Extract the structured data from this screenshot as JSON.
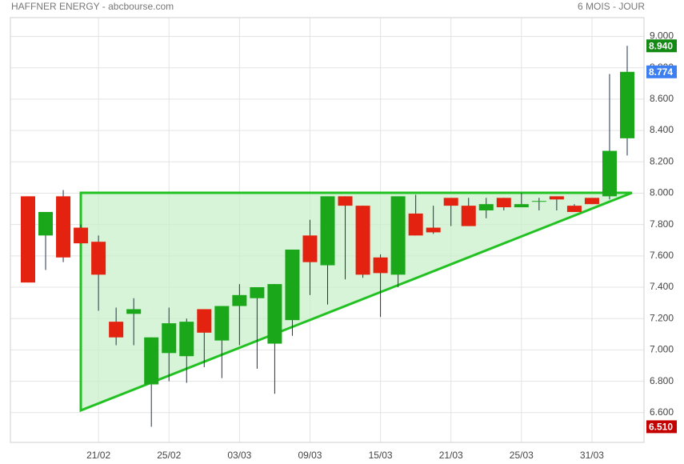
{
  "header": {
    "title": "HAFFNER ENERGY - abcbourse.com",
    "period": "6 MOIS - JOUR"
  },
  "chart_data": {
    "type": "candlestick",
    "categories": [
      null,
      null,
      null,
      null,
      "21/02",
      null,
      null,
      null,
      "25/02",
      null,
      null,
      null,
      "03/03",
      null,
      null,
      null,
      "09/03",
      null,
      null,
      null,
      "15/03",
      null,
      null,
      null,
      "21/03",
      null,
      null,
      null,
      "25/03",
      null,
      null,
      null,
      "31/03",
      null,
      null
    ],
    "open": [
      7.98,
      7.73,
      7.98,
      7.78,
      7.69,
      7.18,
      7.23,
      6.78,
      6.98,
      6.96,
      7.26,
      7.06,
      7.28,
      7.33,
      7.04,
      7.19,
      7.73,
      7.54,
      7.98,
      7.92,
      7.59,
      7.48,
      7.87,
      7.78,
      7.97,
      7.92,
      7.89,
      7.97,
      7.91,
      7.95,
      7.98,
      7.92,
      7.97,
      7.98,
      8.35
    ],
    "high": [
      7.98,
      7.88,
      8.02,
      7.8,
      7.73,
      7.27,
      7.33,
      7.08,
      7.27,
      7.2,
      7.26,
      7.28,
      7.42,
      7.4,
      7.42,
      7.64,
      7.83,
      7.98,
      7.98,
      7.92,
      7.61,
      7.98,
      7.99,
      7.92,
      7.97,
      7.97,
      7.97,
      7.97,
      8.0,
      7.97,
      7.98,
      7.93,
      7.97,
      8.76,
      8.94
    ],
    "low": [
      7.43,
      7.51,
      7.56,
      7.68,
      7.25,
      7.03,
      7.03,
      6.51,
      6.8,
      6.79,
      6.89,
      6.82,
      7.03,
      6.88,
      6.72,
      7.09,
      7.35,
      7.29,
      7.45,
      7.46,
      7.21,
      7.4,
      7.73,
      7.74,
      7.79,
      7.79,
      7.84,
      7.89,
      7.91,
      7.89,
      7.89,
      7.88,
      7.93,
      7.96,
      8.24
    ],
    "close": [
      7.43,
      7.88,
      7.59,
      7.68,
      7.48,
      7.08,
      7.26,
      7.08,
      7.17,
      7.18,
      7.11,
      7.28,
      7.35,
      7.4,
      7.42,
      7.64,
      7.56,
      7.98,
      7.92,
      7.48,
      7.49,
      7.98,
      7.73,
      7.75,
      7.92,
      7.79,
      7.93,
      7.91,
      7.93,
      7.95,
      7.96,
      7.88,
      7.93,
      8.27,
      8.774
    ],
    "up_color": "#1aa81a",
    "down_color": "#e3230f",
    "wick_color": "#1d3350",
    "ylim": [
      6.41,
      9.12
    ],
    "yticks": [
      {
        "value": 6.6,
        "label": "6.600"
      },
      {
        "value": 6.8,
        "label": "6.800"
      },
      {
        "value": 7.0,
        "label": "7.000"
      },
      {
        "value": 7.2,
        "label": "7.200"
      },
      {
        "value": 7.4,
        "label": "7.400"
      },
      {
        "value": 7.6,
        "label": "7.600"
      },
      {
        "value": 7.8,
        "label": "7.800"
      },
      {
        "value": 8.0,
        "label": "8.000"
      },
      {
        "value": 8.2,
        "label": "8.200"
      },
      {
        "value": 8.4,
        "label": "8.400"
      },
      {
        "value": 8.6,
        "label": "8.600"
      },
      {
        "value": 8.8,
        "label": "8.800"
      },
      {
        "value": 9.0,
        "label": "9.000"
      }
    ],
    "price_labels": [
      {
        "value": 8.94,
        "label": "8.940",
        "color": "#138a13"
      },
      {
        "value": 8.774,
        "label": "8.774",
        "color": "#3b7ff2"
      },
      {
        "value": 6.51,
        "label": "6.510",
        "color": "#c40000"
      }
    ],
    "grid": true
  }
}
